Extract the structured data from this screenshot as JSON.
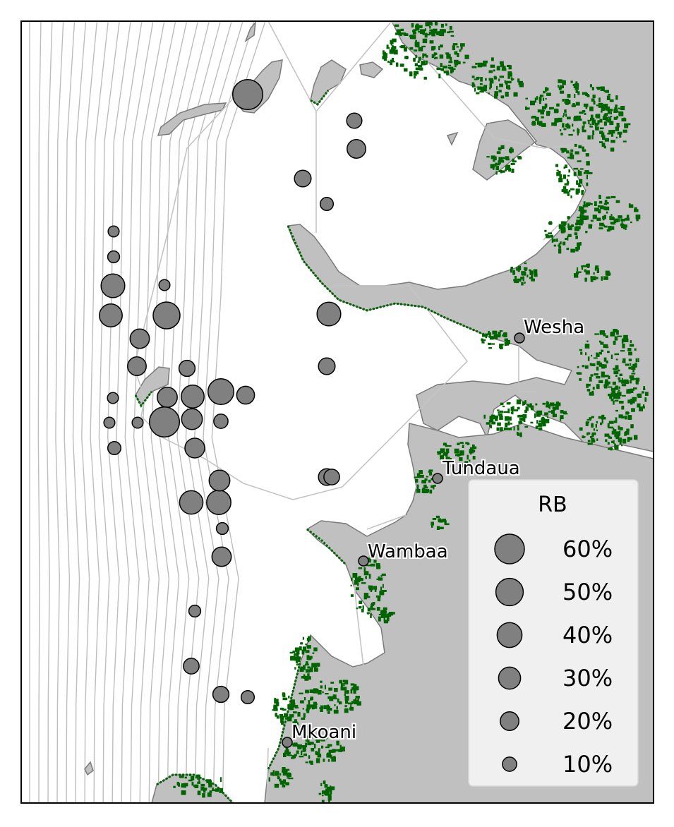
{
  "map": {
    "colors": {
      "land": "#c0c0c0",
      "mangrove": "#006400",
      "marker_fill": "#808080",
      "marker_edge": "#000000",
      "contour": "#bdbdbd",
      "boundary": "#c4c4c4",
      "legend_bg": "#f0f0f0",
      "legend_border": "#d8d8d8"
    },
    "places": [
      {
        "name": "Wesha",
        "value": null
      },
      {
        "name": "Tundaua",
        "value": null
      },
      {
        "name": "Wambaa",
        "value": null
      },
      {
        "name": "Mkoani",
        "value": null
      }
    ],
    "sites_rb_percent": [
      62,
      12,
      20,
      15,
      8,
      5,
      6,
      36,
      33,
      5,
      48,
      22,
      36,
      20,
      14,
      44,
      33,
      5,
      24,
      18,
      5,
      62,
      5,
      26,
      10,
      8,
      23,
      15,
      15,
      35,
      38,
      26,
      6,
      22,
      6,
      13,
      14,
      8,
      13
    ]
  },
  "legend": {
    "title": "RB",
    "entries": [
      {
        "label": "60%",
        "value": 60
      },
      {
        "label": "50%",
        "value": 50
      },
      {
        "label": "40%",
        "value": 40
      },
      {
        "label": "30%",
        "value": 30
      },
      {
        "label": "20%",
        "value": 20
      },
      {
        "label": "10%",
        "value": 10
      }
    ]
  }
}
